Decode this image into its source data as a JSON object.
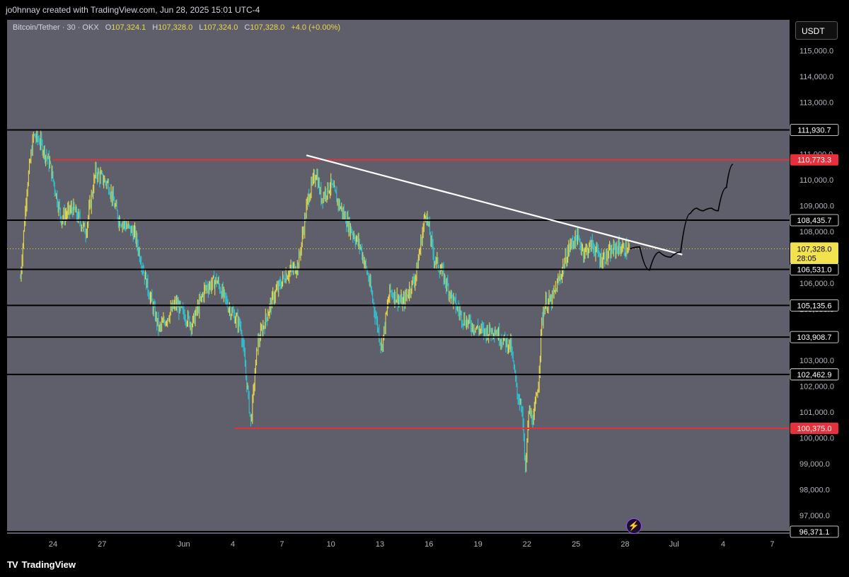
{
  "header": {
    "attribution": "jo0hnnay created with TradingView.com, Jun 28, 2025 15:01 UTC-4"
  },
  "legend": {
    "symbol": "Bitcoin/Tether · 30 · OKX",
    "o_label": "O",
    "o_value": "107,324.1",
    "h_label": "H",
    "h_value": "107,328.0",
    "l_label": "L",
    "l_value": "107,324.0",
    "c_label": "C",
    "c_value": "107,328.0",
    "change": "+4.0 (+0.00%)"
  },
  "currency_button": "USDT",
  "brand": {
    "logo": "TV",
    "name": "TradingView"
  },
  "icons": {
    "alert": "lightning-icon"
  },
  "colors": {
    "candle_up": "#e8d84a",
    "candle_down": "#2ec4d6",
    "support": "#000000",
    "resistance": "#e8303c",
    "trendline": "#ffffff",
    "background": "#5f5f6b"
  },
  "chart_data": {
    "type": "line",
    "title": "",
    "symbol": "BTC/USDT",
    "timeframe": "30",
    "exchange": "OKX",
    "ylim": [
      96300,
      115800
    ],
    "y_ticks": [
      97000,
      98000,
      99000,
      100000,
      101000,
      102000,
      103000,
      104000,
      105000,
      106000,
      107000,
      108000,
      109000,
      110000,
      111000,
      112000,
      113000,
      114000,
      115000
    ],
    "y_tick_labels": [
      "97,000.0",
      "98,000.0",
      "99,000.0",
      "100,000.0",
      "101,000.0",
      "102,000.0",
      "103,000.0",
      "104,000.0",
      "105,000.0",
      "106,000.0",
      "107,000.0",
      "108,000.0",
      "109,000.0",
      "110,000.0",
      "111,000.0",
      "112,000.0",
      "113,000.0",
      "114,000.0",
      "115,000.0"
    ],
    "x_ticks": [
      "24",
      "27",
      "Jun",
      "4",
      "7",
      "10",
      "13",
      "16",
      "19",
      "22",
      "25",
      "28",
      "Jul",
      "4",
      "7"
    ],
    "x_tick_days": [
      -7,
      -4,
      1,
      4,
      7,
      10,
      13,
      16,
      19,
      22,
      25,
      28,
      31,
      34,
      37
    ],
    "series": [
      {
        "x": [
          -9,
          -8.6,
          -8.2,
          -7.8,
          -7.2,
          -6.5,
          -5.8,
          -5,
          -4.4,
          -3.6,
          -3,
          -2,
          -1.2,
          -0.5,
          0.5,
          1.5,
          2.3,
          3,
          3.8,
          4.5,
          5.1,
          5.5,
          5.9,
          6.5,
          7.2,
          8,
          8.6,
          9.1,
          9.4,
          10,
          10.6,
          11.2,
          11.8,
          12.3,
          13.1,
          13.6,
          14.4,
          15.2,
          15.8,
          16.3,
          16.8,
          17.5,
          18.1,
          18.8,
          19.4,
          20,
          20.5,
          21,
          21.4,
          21.7,
          21.9,
          22.1,
          22.4,
          22.7,
          22.9,
          23.1,
          23.5,
          24,
          24.6,
          25,
          25.5,
          26,
          26.5,
          27,
          27.5,
          28,
          28.3
        ],
        "y": [
          106200,
          109700,
          111700,
          111500,
          110600,
          108500,
          108900,
          108000,
          110300,
          109800,
          108500,
          107900,
          105800,
          104200,
          105200,
          104400,
          105800,
          106100,
          105000,
          104300,
          100600,
          103600,
          104400,
          105500,
          106300,
          106700,
          109300,
          110300,
          109300,
          109800,
          108900,
          108100,
          107400,
          106200,
          103500,
          105700,
          105200,
          106300,
          108800,
          107000,
          106400,
          105300,
          104600,
          104300,
          104100,
          104200,
          103800,
          103600,
          101700,
          101200,
          98600,
          101000,
          100700,
          102200,
          104500,
          105200,
          105300,
          106200,
          107400,
          107800,
          107200,
          107500,
          106900,
          107100,
          107400,
          107300,
          107328
        ]
      }
    ],
    "horizontal_levels": [
      {
        "value": 111930.7,
        "label": "111,930.7",
        "kind": "support"
      },
      {
        "value": 110773.3,
        "label": "110,773.3",
        "kind": "resistance"
      },
      {
        "value": 108435.7,
        "label": "108,435.7",
        "kind": "support"
      },
      {
        "value": 106531.0,
        "label": "106,531.0",
        "kind": "support"
      },
      {
        "value": 105135.6,
        "label": "105,135.6",
        "kind": "support"
      },
      {
        "value": 103908.7,
        "label": "103,908.7",
        "kind": "support"
      },
      {
        "value": 102462.9,
        "label": "102,462.9",
        "kind": "support"
      },
      {
        "value": 100375.0,
        "label": "100,375.0",
        "kind": "resistance"
      },
      {
        "value": 96371.1,
        "label": "96,371.1",
        "kind": "support"
      }
    ],
    "current_price": {
      "value": 107328.0,
      "label": "107,328.0",
      "countdown": "28:05"
    },
    "trendline": {
      "x": [
        8.5,
        31.5
      ],
      "y": [
        110950,
        107100
      ]
    },
    "projection": {
      "x": [
        28.3,
        28.9,
        29.5,
        30.1,
        30.8,
        31.4,
        32,
        32.4,
        32.8,
        33.3,
        33.7,
        34.2,
        34.6
      ],
      "y": [
        107328,
        107400,
        106500,
        107200,
        107000,
        107200,
        108700,
        108900,
        108800,
        108900,
        108800,
        109700,
        110600
      ]
    }
  }
}
